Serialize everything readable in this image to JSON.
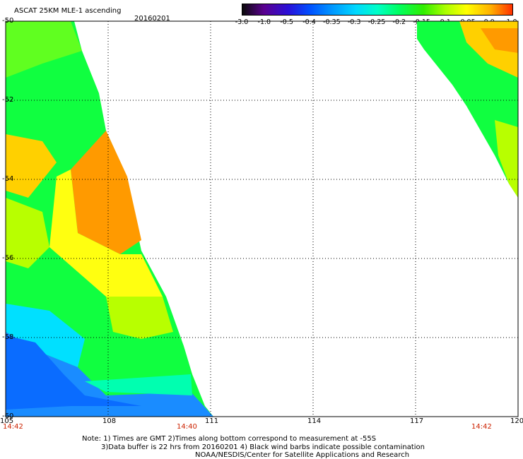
{
  "title": "ASCAT 25KM MLE-1 ascending",
  "date": "20160201",
  "colorbar": {
    "labels": [
      "-3.0",
      "-1.0",
      "-0.5",
      "-0.4",
      "-0.35",
      "-0.3",
      "-0.25",
      "-0.2",
      "-0.15",
      "-0.1",
      "-0.05",
      "0.0",
      "1.0"
    ],
    "colors": [
      "#0a0a0a",
      "#5a0090",
      "#2a10d8",
      "#0050ff",
      "#0095ff",
      "#00d8ff",
      "#00ffc8",
      "#00ff60",
      "#30ee00",
      "#a8ff00",
      "#ffff00",
      "#ffb000",
      "#ff3000"
    ]
  },
  "lat_labels": [
    "-50",
    "-52",
    "-54",
    "-56",
    "-58",
    "-60"
  ],
  "lon_labels": [
    "105",
    "108",
    "111",
    "114",
    "117",
    "120"
  ],
  "time_labels": [
    "14:42",
    "14:40",
    "14:42"
  ],
  "notes": [
    "Note: 1) Times are GMT 2)Times along bottom correspond to measurement at -55S",
    "3)Data buffer is 22 hrs from 20160201 4) Black wind barbs indicate possible contamination",
    "NOAA/NESDIS/Center for Satellite Applications and Research"
  ]
}
